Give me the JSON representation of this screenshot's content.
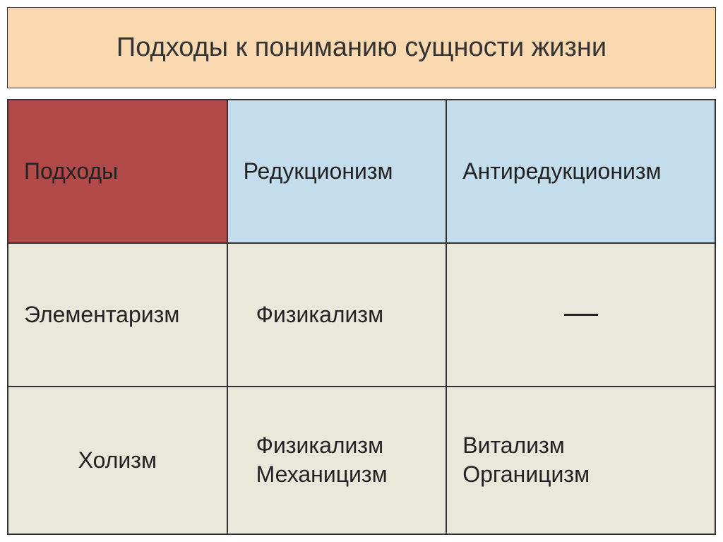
{
  "title": "Подходы к пониманию сущности жизни",
  "colors": {
    "title_bg": "#fad9b0",
    "header_bg": "#c4ddec",
    "accent_bg": "#b34a4a",
    "body_bg": "#eae8db",
    "border": "#333333",
    "text": "#222222"
  },
  "title_fontsize": 38,
  "cell_fontsize": 32,
  "table": {
    "header": {
      "col0": "Подходы",
      "col1": "Редукционизм",
      "col2": "Антиредукционизм"
    },
    "rows": [
      {
        "label": "Элементаризм",
        "col1": [
          "Физикализм"
        ],
        "col2_empty": true
      },
      {
        "label": "Холизм",
        "col1": [
          "Физикализм",
          "Механицизм"
        ],
        "col2": [
          "Витализм",
          "Органицизм"
        ]
      }
    ]
  }
}
